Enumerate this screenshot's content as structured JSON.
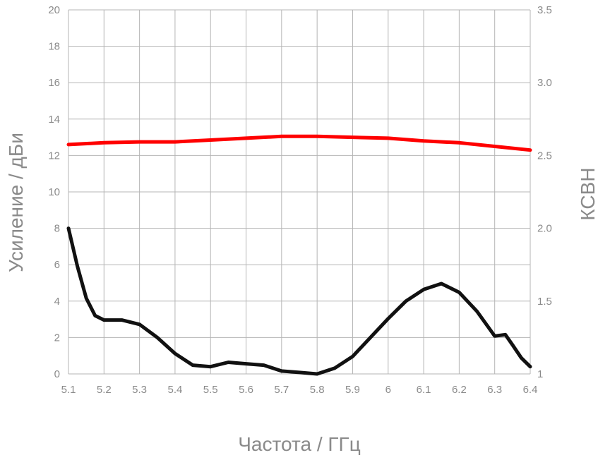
{
  "chart_data": {
    "type": "line",
    "xlabel": "Частота / ГГц",
    "ylabel_left": "Усиление / дБи",
    "ylabel_right": "КСВН",
    "xlim": [
      5.1,
      6.4
    ],
    "ylim_left": [
      0,
      20
    ],
    "ylim_right": [
      1.0,
      3.5
    ],
    "grid": true,
    "x_ticks": [
      "5.1",
      "5.2",
      "5.3",
      "5.4",
      "5.5",
      "5.6",
      "5.7",
      "5.8",
      "5.9",
      "6",
      "6.1",
      "6.2",
      "6.3",
      "6.4"
    ],
    "y_left_ticks": [
      "0",
      "2",
      "4",
      "6",
      "8",
      "10",
      "12",
      "14",
      "16",
      "18",
      "20"
    ],
    "y_right_ticks": [
      "1",
      "1.5",
      "2.0",
      "2.5",
      "3.0",
      "3.5"
    ],
    "series": [
      {
        "axis": "left",
        "color": "#ff0000",
        "x": [
          5.1,
          5.2,
          5.3,
          5.4,
          5.5,
          5.6,
          5.7,
          5.8,
          5.9,
          6.0,
          6.1,
          6.2,
          6.3,
          6.4
        ],
        "values": [
          12.6,
          12.7,
          12.75,
          12.75,
          12.85,
          12.95,
          13.05,
          13.05,
          13.0,
          12.95,
          12.8,
          12.7,
          12.5,
          12.3
        ]
      },
      {
        "axis": "right",
        "color": "#111111",
        "x": [
          5.1,
          5.125,
          5.15,
          5.175,
          5.2,
          5.25,
          5.3,
          5.35,
          5.4,
          5.45,
          5.5,
          5.55,
          5.6,
          5.65,
          5.7,
          5.75,
          5.8,
          5.85,
          5.9,
          5.95,
          6.0,
          6.05,
          6.1,
          6.15,
          6.2,
          6.25,
          6.3,
          6.33,
          6.35,
          6.375,
          6.4
        ],
        "values": [
          2.0,
          1.74,
          1.52,
          1.4,
          1.37,
          1.37,
          1.34,
          1.25,
          1.14,
          1.06,
          1.05,
          1.08,
          1.07,
          1.06,
          1.02,
          1.01,
          1.0,
          1.04,
          1.12,
          1.25,
          1.38,
          1.5,
          1.58,
          1.62,
          1.56,
          1.43,
          1.26,
          1.27,
          1.2,
          1.11,
          1.05
        ]
      }
    ]
  }
}
